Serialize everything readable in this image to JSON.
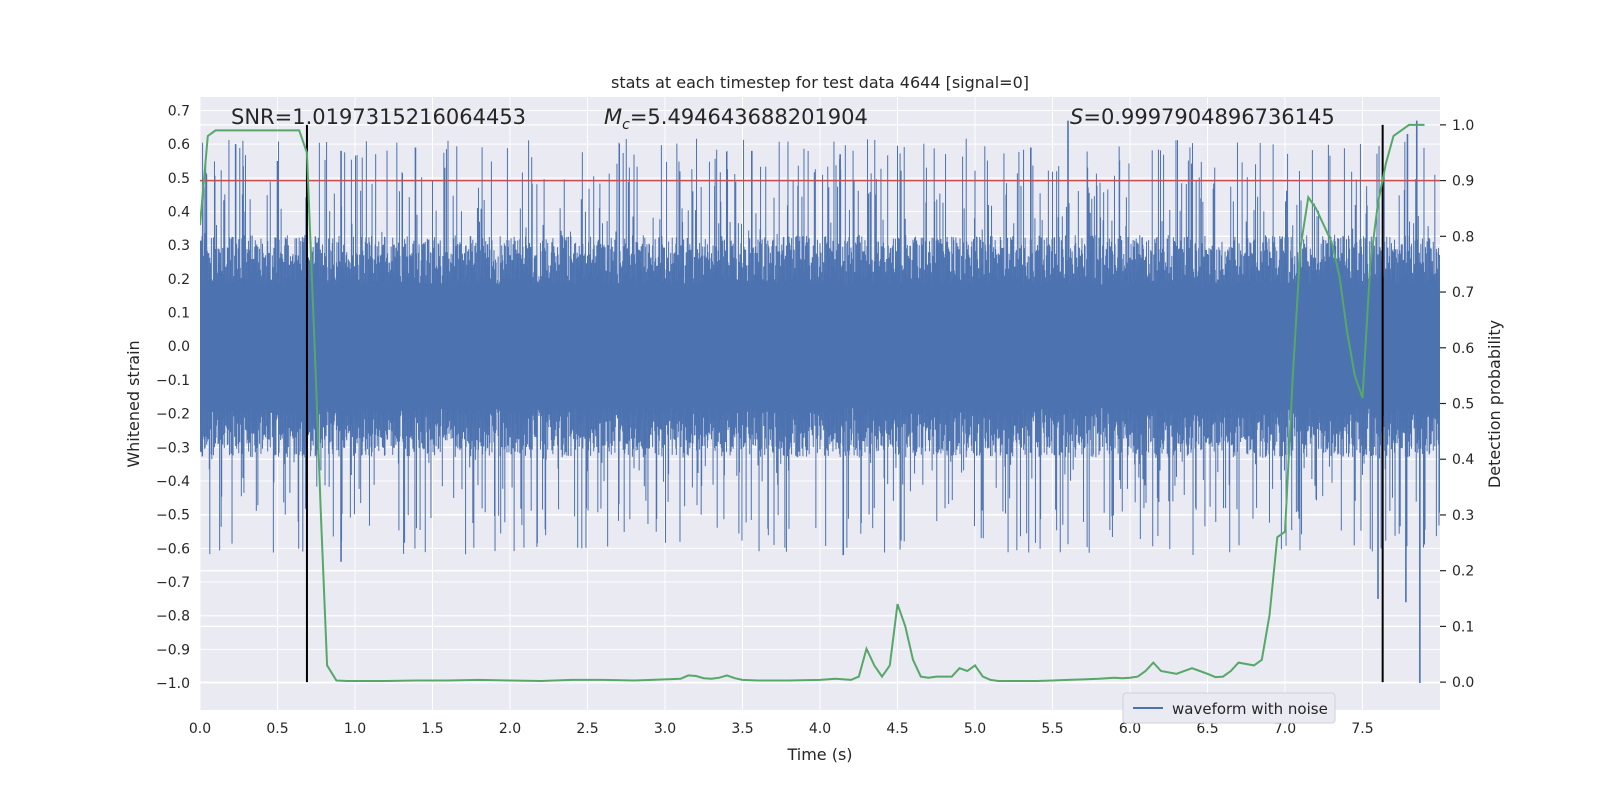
{
  "chart_data": {
    "type": "line",
    "title": "stats at each timestep for test data 4644 [signal=0]",
    "xlabel": "Time (s)",
    "ylabel_left": "Whitened strain",
    "ylabel_right": "Detection probability",
    "xlim": [
      0,
      8
    ],
    "ylim_left": [
      -1.08,
      0.74
    ],
    "ylim_right": [
      -0.05,
      1.05
    ],
    "x_ticks": [
      "0.0",
      "0.5",
      "1.0",
      "1.5",
      "2.0",
      "2.5",
      "3.0",
      "3.5",
      "4.0",
      "4.5",
      "5.0",
      "5.5",
      "6.0",
      "6.5",
      "7.0",
      "7.5"
    ],
    "x_tick_values": [
      0,
      0.5,
      1.0,
      1.5,
      2.0,
      2.5,
      3.0,
      3.5,
      4.0,
      4.5,
      5.0,
      5.5,
      6.0,
      6.5,
      7.0,
      7.5
    ],
    "y_left_ticks": [
      "0.7",
      "0.6",
      "0.5",
      "0.4",
      "0.3",
      "0.2",
      "0.1",
      "0.0",
      "−0.1",
      "−0.2",
      "−0.3",
      "−0.4",
      "−0.5",
      "−0.6",
      "−0.7",
      "−0.8",
      "−0.9",
      "−1.0"
    ],
    "y_left_tick_values": [
      0.7,
      0.6,
      0.5,
      0.4,
      0.3,
      0.2,
      0.1,
      0.0,
      -0.1,
      -0.2,
      -0.3,
      -0.4,
      -0.5,
      -0.6,
      -0.7,
      -0.8,
      -0.9,
      -1.0
    ],
    "y_right_ticks": [
      "1.0",
      "0.9",
      "0.8",
      "0.7",
      "0.6",
      "0.5",
      "0.4",
      "0.3",
      "0.2",
      "0.1",
      "0.0"
    ],
    "y_right_tick_values": [
      1.0,
      0.9,
      0.8,
      0.7,
      0.6,
      0.5,
      0.4,
      0.3,
      0.2,
      0.1,
      0.0
    ],
    "grid": true,
    "legend": {
      "position": "lower-right",
      "entries": [
        "waveform with noise"
      ]
    },
    "annotations": {
      "snr": "SNR=1.0197315216064453",
      "mc_symbol": "M",
      "mc_sub": "c",
      "mc_value": "=5.494643688201904",
      "s_symbol": "S",
      "s_value": "=0.9997904896736145"
    },
    "threshold_probability": 0.9,
    "vertical_lines_x": [
      0.69,
      7.63
    ],
    "waveform": {
      "name": "waveform with noise",
      "x_range": [
        0,
        8
      ],
      "amplitude_envelope": [
        0.33,
        0.62
      ],
      "outlier_peaks": [
        {
          "x": 0.23,
          "y": 0.6
        },
        {
          "x": 0.5,
          "y": 0.55
        },
        {
          "x": 0.91,
          "y": 0.58
        },
        {
          "x": 1.39,
          "y": 0.59
        },
        {
          "x": 3.56,
          "y": 0.58
        },
        {
          "x": 4.13,
          "y": 0.57
        },
        {
          "x": 5.36,
          "y": 0.59
        },
        {
          "x": 5.6,
          "y": 0.67
        },
        {
          "x": 7.79,
          "y": 0.63
        },
        {
          "x": 7.85,
          "y": 0.67
        },
        {
          "x": 0.91,
          "y": -0.64
        },
        {
          "x": 4.15,
          "y": -0.62
        },
        {
          "x": 7.6,
          "y": -0.75
        },
        {
          "x": 7.78,
          "y": -0.76
        },
        {
          "x": 7.87,
          "y": -1.0
        }
      ]
    },
    "detection_probability": {
      "x": [
        0,
        0.05,
        0.1,
        0.2,
        0.3,
        0.4,
        0.5,
        0.6,
        0.64,
        0.69,
        0.74,
        0.78,
        0.82,
        0.88,
        0.95,
        1.05,
        1.2,
        1.4,
        1.6,
        1.8,
        2.0,
        2.2,
        2.4,
        2.6,
        2.8,
        3.0,
        3.1,
        3.15,
        3.2,
        3.25,
        3.3,
        3.35,
        3.4,
        3.45,
        3.5,
        3.6,
        3.8,
        4.0,
        4.1,
        4.2,
        4.25,
        4.3,
        4.35,
        4.4,
        4.45,
        4.5,
        4.55,
        4.6,
        4.65,
        4.7,
        4.75,
        4.8,
        4.85,
        4.9,
        4.95,
        5.0,
        5.05,
        5.1,
        5.15,
        5.2,
        5.3,
        5.4,
        5.5,
        5.6,
        5.7,
        5.8,
        5.9,
        5.95,
        6.0,
        6.05,
        6.1,
        6.15,
        6.2,
        6.3,
        6.4,
        6.45,
        6.5,
        6.55,
        6.6,
        6.65,
        6.7,
        6.8,
        6.85,
        6.9,
        6.95,
        7.0,
        7.05,
        7.1,
        7.15,
        7.2,
        7.25,
        7.3,
        7.35,
        7.4,
        7.45,
        7.5,
        7.55,
        7.6,
        7.65,
        7.7,
        7.75,
        7.8,
        7.85,
        7.9
      ],
      "y": [
        0.82,
        0.98,
        0.99,
        0.99,
        0.99,
        0.99,
        0.99,
        0.99,
        0.99,
        0.95,
        0.6,
        0.3,
        0.03,
        0.003,
        0.002,
        0.002,
        0.002,
        0.003,
        0.003,
        0.004,
        0.003,
        0.002,
        0.004,
        0.004,
        0.003,
        0.005,
        0.006,
        0.012,
        0.011,
        0.007,
        0.006,
        0.008,
        0.012,
        0.007,
        0.004,
        0.003,
        0.003,
        0.004,
        0.006,
        0.004,
        0.01,
        0.06,
        0.03,
        0.01,
        0.03,
        0.14,
        0.1,
        0.04,
        0.01,
        0.008,
        0.01,
        0.01,
        0.01,
        0.025,
        0.02,
        0.03,
        0.01,
        0.004,
        0.002,
        0.002,
        0.002,
        0.002,
        0.003,
        0.004,
        0.005,
        0.006,
        0.008,
        0.007,
        0.008,
        0.01,
        0.02,
        0.035,
        0.02,
        0.015,
        0.025,
        0.02,
        0.015,
        0.009,
        0.01,
        0.02,
        0.035,
        0.03,
        0.04,
        0.12,
        0.26,
        0.27,
        0.55,
        0.78,
        0.87,
        0.85,
        0.82,
        0.79,
        0.73,
        0.63,
        0.55,
        0.51,
        0.75,
        0.86,
        0.93,
        0.98,
        0.99,
        1.0,
        1.0,
        1.0
      ]
    },
    "colors": {
      "background": "#eaeaf2",
      "grid": "#ffffff",
      "waveform": "#4c72b0",
      "probability": "#55a868",
      "threshold": "#c44e52",
      "vertical": "#000000"
    }
  }
}
